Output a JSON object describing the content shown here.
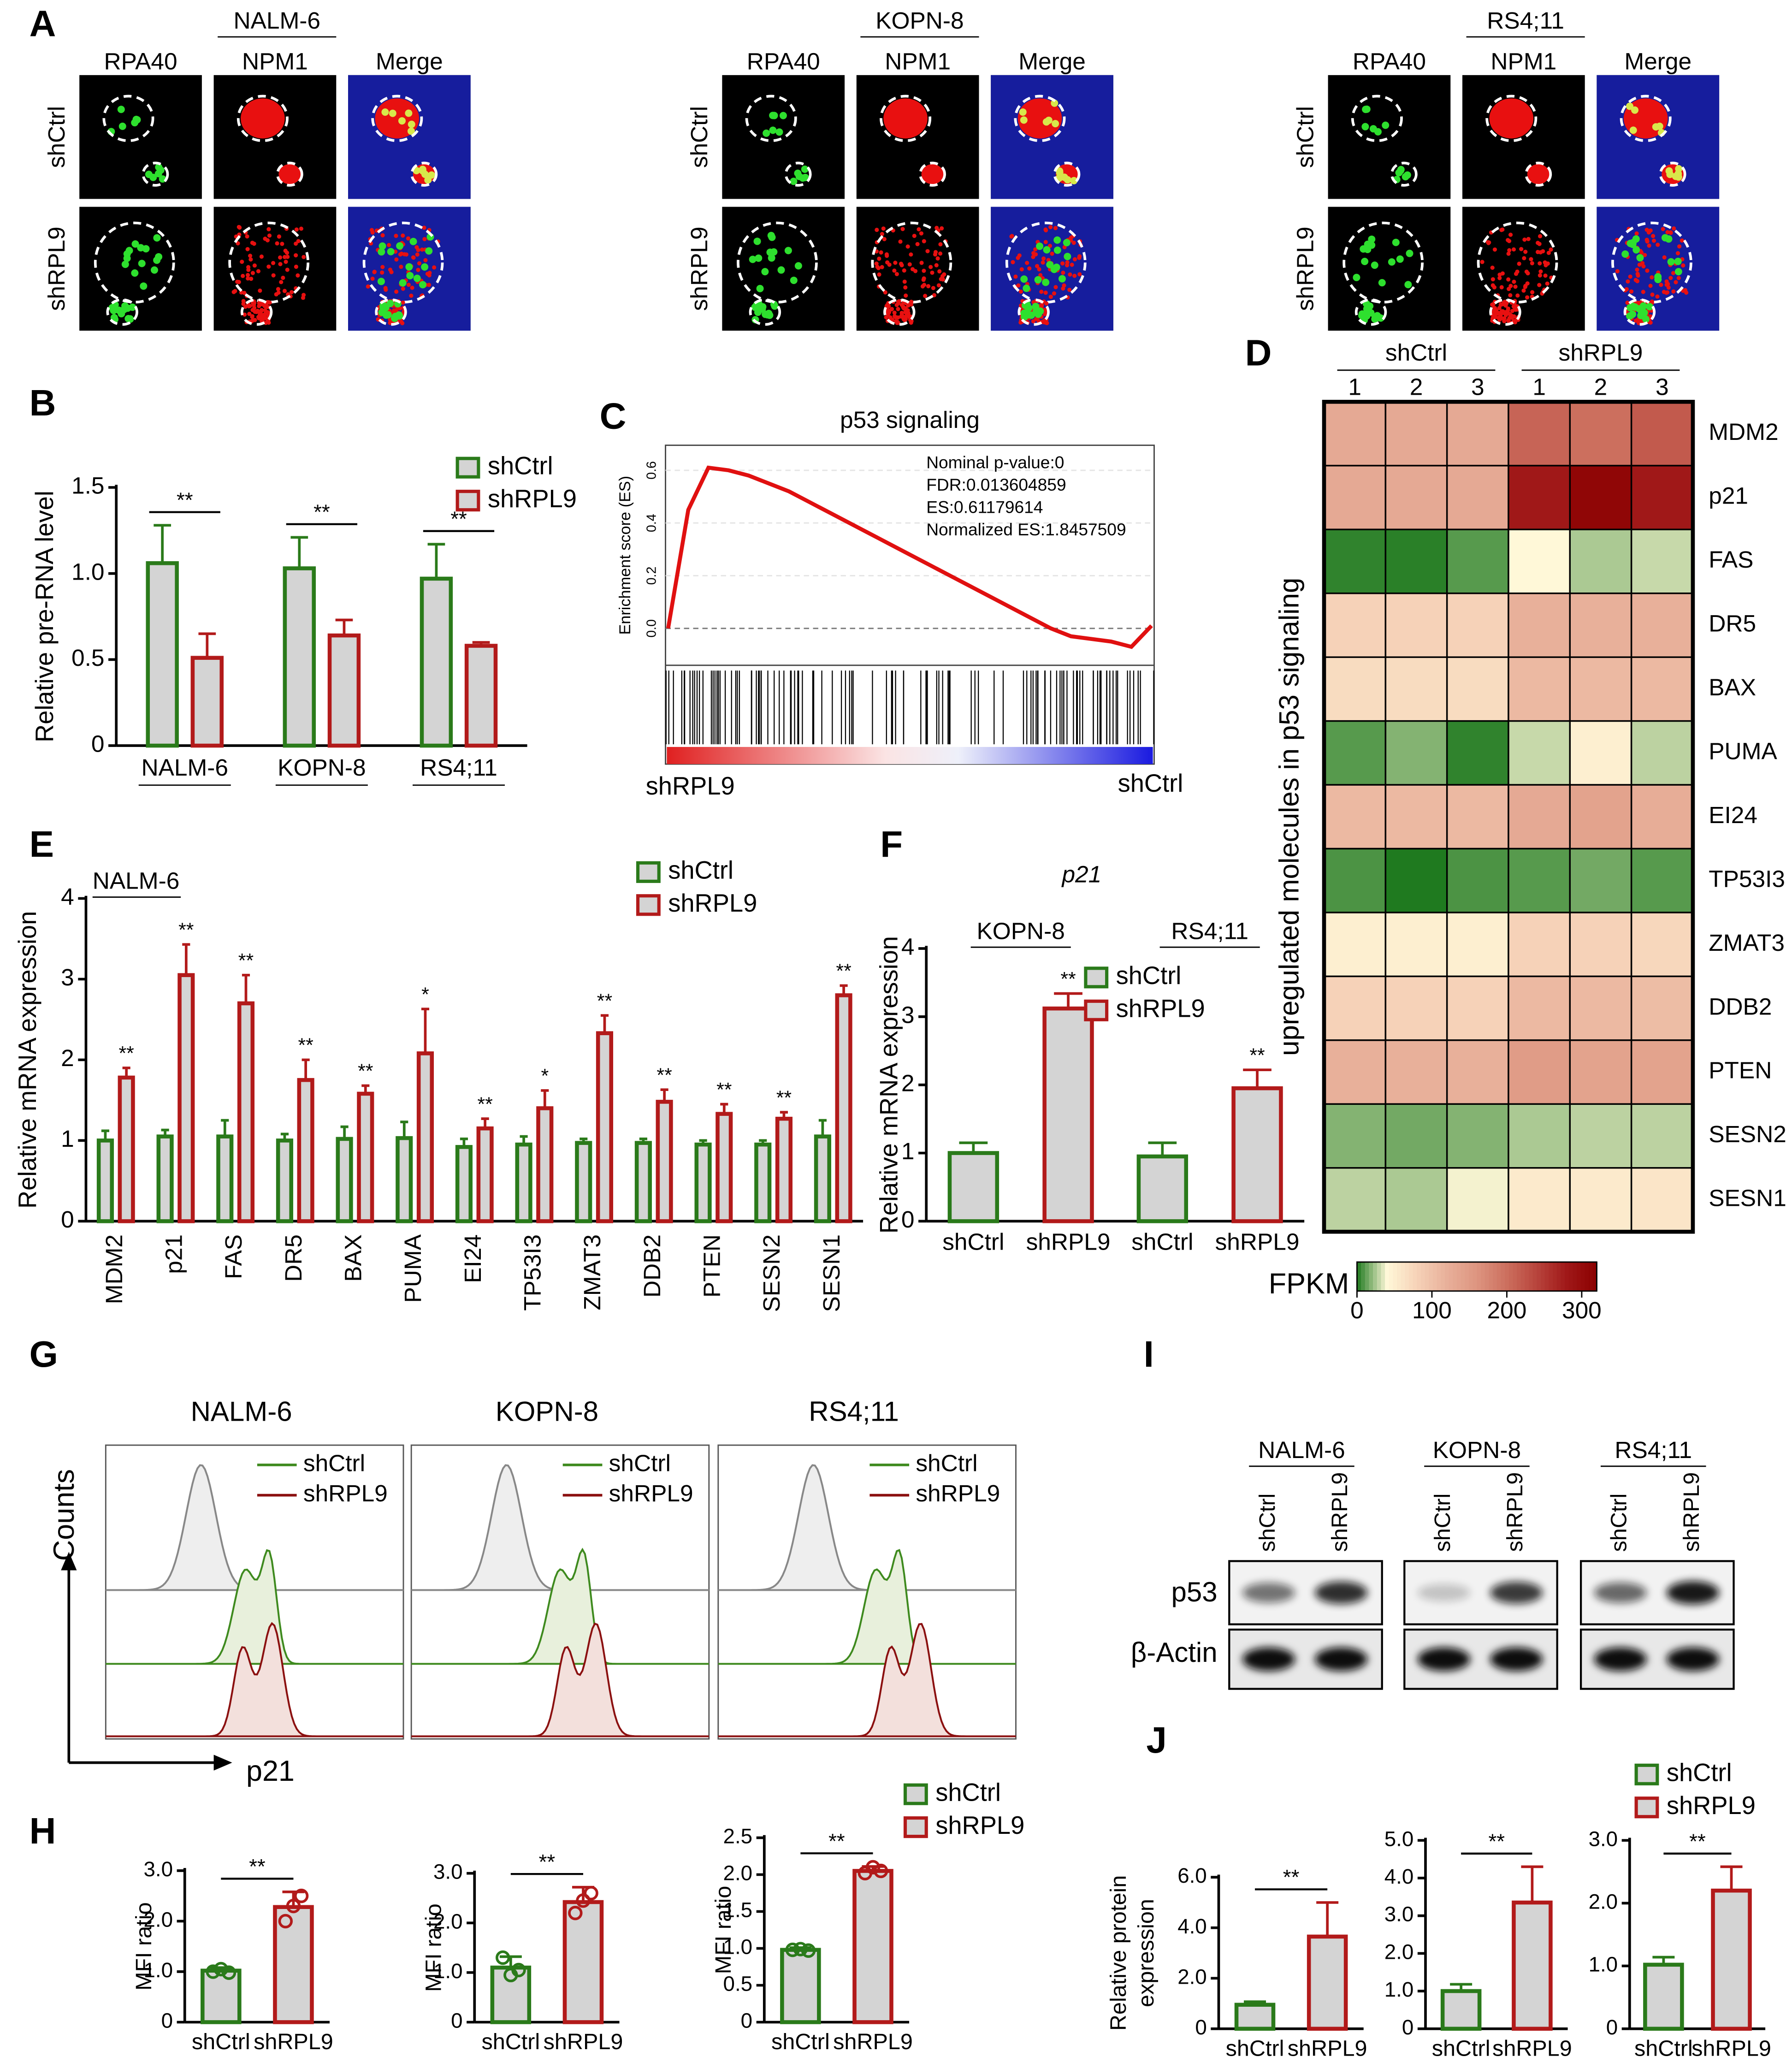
{
  "microscopy": {
    "panel": "A",
    "groups": [
      {
        "title": "NALM-6",
        "channels": [
          "RPA40",
          "NPM1",
          "Merge"
        ],
        "rows": [
          "shCtrl",
          "shRPL9"
        ]
      },
      {
        "title": "KOPN-8",
        "channels": [
          "RPA40",
          "NPM1",
          "Merge"
        ],
        "rows": [
          "shCtrl",
          "shRPL9"
        ]
      },
      {
        "title": "RS4;11",
        "channels": [
          "RPA40",
          "NPM1",
          "Merge"
        ],
        "rows": [
          "shCtrl",
          "shRPL9"
        ]
      }
    ]
  },
  "flow": {
    "panel": "G",
    "titles": [
      "NALM-6",
      "KOPN-8",
      "RS4;11"
    ],
    "legend": [
      "shCtrl",
      "shRPL9"
    ],
    "ylabel": "Counts",
    "xlabel": "p21"
  },
  "blot": {
    "panel": "I",
    "groups": [
      "NALM-6",
      "KOPN-8",
      "RS4;11"
    ],
    "lanes": [
      "shCtrl",
      "shRPL9"
    ],
    "rows": [
      "p53",
      "β-Actin"
    ]
  },
  "chart_data": [
    {
      "panel": "B",
      "type": "bar",
      "categories": [
        "NALM-6",
        "KOPN-8",
        "RS4;11"
      ],
      "series": [
        {
          "name": "shCtrl",
          "color": "#2a7a1a",
          "values": [
            1.06,
            1.03,
            0.97
          ],
          "errors": [
            0.22,
            0.18,
            0.2
          ]
        },
        {
          "name": "shRPL9",
          "color": "#b21a1a",
          "values": [
            0.51,
            0.64,
            0.58
          ],
          "errors": [
            0.14,
            0.09,
            0.02
          ]
        }
      ],
      "annotations": [
        "**",
        "**",
        "**"
      ],
      "ylabel": "Relative pre-RNA level",
      "ylim": [
        0,
        1.5
      ],
      "yticks": [
        0,
        0.5,
        {
          "value": 1,
          "label": "1.0"
        },
        1.5
      ],
      "bar_fill": "#d4d4d4"
    },
    {
      "panel": "C",
      "type": "line",
      "title": "p53 signaling",
      "ylabel": "Enrichment score (ES)",
      "color": "#e01010",
      "values": [
        0,
        0.45,
        0.61,
        0.6,
        0.58,
        0.55,
        0.52,
        0.48,
        0.44,
        0.4,
        0.36,
        0.32,
        0.28,
        0.24,
        0.2,
        0.16,
        0.12,
        0.08,
        0.04,
        0,
        -0.03,
        -0.04,
        -0.05,
        -0.07,
        0.01
      ],
      "ylim": [
        -0.14,
        0.695
      ],
      "yticks": [
        {
          "value": 0,
          "label": "0.0"
        },
        0.2,
        0.4,
        0.6
      ],
      "annotations": [
        "Nominal p-value:0",
        "FDR:0.013604859",
        "ES:0.61179614",
        "Normalized ES:1.8457509"
      ],
      "xlabels": [
        "shRPL9",
        "shCtrl"
      ]
    },
    {
      "panel": "D",
      "type": "heatmap",
      "groups": [
        "shCtrl",
        "shRPL9"
      ],
      "columns": [
        "1",
        "2",
        "3",
        "1",
        "2",
        "3"
      ],
      "rows": [
        "MDM2",
        "p21",
        "FAS",
        "DR5",
        "BAX",
        "PUMA",
        "EI24",
        "TP53I3",
        "ZMAT3",
        "DDB2",
        "PTEN",
        "SESN2",
        "SESN1"
      ],
      "values": [
        [
          130,
          130,
          130,
          210,
          200,
          220
        ],
        [
          130,
          130,
          130,
          280,
          310,
          280
        ],
        [
          3,
          2,
          10,
          40,
          25,
          30
        ],
        [
          80,
          80,
          80,
          120,
          120,
          120
        ],
        [
          70,
          70,
          70,
          110,
          110,
          110
        ],
        [
          10,
          18,
          3,
          30,
          50,
          28
        ],
        [
          110,
          110,
          110,
          130,
          140,
          125
        ],
        [
          8,
          0,
          8,
          10,
          15,
          10
        ],
        [
          50,
          50,
          50,
          80,
          80,
          75
        ],
        [
          80,
          80,
          80,
          110,
          110,
          105
        ],
        [
          120,
          120,
          120,
          150,
          140,
          140
        ],
        [
          18,
          15,
          18,
          25,
          28,
          28
        ],
        [
          28,
          25,
          38,
          55,
          55,
          60
        ]
      ],
      "ylabel": "upregulated molecules in p53 signaling",
      "colorbar_label": "FPKM",
      "clim": [
        0,
        320
      ],
      "cticks": [
        0,
        100,
        200,
        300
      ],
      "colormap": [
        "#1f7a1f",
        "#fff8d8",
        "#f6d2b8",
        "#e8b09a",
        "#dd9580",
        "#cc6f5e",
        "#b8443c",
        "#a01818",
        "#8b0000"
      ]
    },
    {
      "panel": "E",
      "type": "bar",
      "subtitle": "NALM-6",
      "categories": [
        "MDM2",
        "p21",
        "FAS",
        "DR5",
        "BAX",
        "PUMA",
        "EI24",
        "TP53I3",
        "ZMAT3",
        "DDB2",
        "PTEN",
        "SESN2",
        "SESN1"
      ],
      "series": [
        {
          "name": "shCtrl",
          "color": "#2a7a1a",
          "values": [
            1.0,
            1.05,
            1.05,
            1.0,
            1.02,
            1.03,
            0.92,
            0.95,
            0.97,
            0.97,
            0.95,
            0.95,
            1.05
          ],
          "errors": [
            0.12,
            0.08,
            0.2,
            0.08,
            0.15,
            0.2,
            0.1,
            0.1,
            0.05,
            0.05,
            0.05,
            0.05,
            0.2
          ]
        },
        {
          "name": "shRPL9",
          "color": "#b21a1a",
          "values": [
            1.78,
            3.05,
            2.7,
            1.75,
            1.58,
            2.08,
            1.15,
            1.4,
            2.33,
            1.48,
            1.33,
            1.27,
            2.8
          ],
          "errors": [
            0.12,
            0.38,
            0.35,
            0.25,
            0.1,
            0.55,
            0.12,
            0.22,
            0.22,
            0.15,
            0.12,
            0.08,
            0.12
          ]
        }
      ],
      "annotations": [
        "**",
        "**",
        "**",
        "**",
        "**",
        "*",
        "**",
        "*",
        "**",
        "**",
        "**",
        "**",
        "**"
      ],
      "ylabel": "Relative mRNA expression",
      "ylim": [
        0,
        4
      ],
      "yticks": [
        0,
        1,
        2,
        3,
        4
      ],
      "bar_fill": "#d4d4d4"
    },
    {
      "panel": "F",
      "type": "bar",
      "title": "p21",
      "categories": [
        "KOPN-8",
        "RS4;11"
      ],
      "series": [
        {
          "name": "shCtrl",
          "color": "#2a7a1a",
          "values": [
            1.0,
            0.95
          ],
          "errors": [
            0.15,
            0.2
          ]
        },
        {
          "name": "shRPL9",
          "color": "#b21a1a",
          "values": [
            3.12,
            1.95
          ],
          "errors": [
            0.22,
            0.27
          ]
        }
      ],
      "annotations": [
        "**",
        "**"
      ],
      "ylabel": "Relative mRNA expression",
      "ylim": [
        0,
        4
      ],
      "yticks": [
        0,
        1,
        2,
        3,
        4
      ],
      "bar_fill": "#d4d4d4"
    },
    {
      "panel": "H",
      "type": "bar",
      "categories": [
        "shCtrl",
        "shRPL9"
      ],
      "colors": [
        "#2a7a1a",
        "#b21a1a"
      ],
      "values": [
        1.02,
        2.28
      ],
      "errors": [
        0.06,
        0.3
      ],
      "points": [
        [
          1.0,
          1.05,
          0.98
        ],
        [
          2.0,
          2.3,
          2.5
        ]
      ],
      "annotation": "**",
      "ylabel": "MFI ratio",
      "ylim": [
        0,
        3
      ],
      "yticks": [
        0,
        {
          "value": 1,
          "label": "1.0"
        },
        {
          "value": 2,
          "label": "2.0"
        },
        {
          "value": 3,
          "label": "3.0"
        }
      ],
      "bar_fill": "#d4d4d4"
    },
    {
      "type": "bar",
      "categories": [
        "shCtrl",
        "shRPL9"
      ],
      "colors": [
        "#2a7a1a",
        "#b21a1a"
      ],
      "values": [
        1.1,
        2.42
      ],
      "errors": [
        0.22,
        0.3
      ],
      "points": [
        [
          1.3,
          0.95,
          1.05
        ],
        [
          2.2,
          2.45,
          2.6
        ]
      ],
      "annotation": "**",
      "ylabel": "MFI ratio",
      "ylim": [
        0,
        3
      ],
      "yticks": [
        0,
        {
          "value": 1,
          "label": "1.0"
        },
        {
          "value": 2,
          "label": "2.0"
        },
        {
          "value": 3,
          "label": "3.0"
        }
      ],
      "bar_fill": "#d4d4d4"
    },
    {
      "type": "bar",
      "categories": [
        "shCtrl",
        "shRPL9"
      ],
      "colors": [
        "#2a7a1a",
        "#b21a1a"
      ],
      "values": [
        0.98,
        2.05
      ],
      "errors": [
        0.03,
        0.06
      ],
      "points": [
        [
          0.98,
          0.99,
          0.97
        ],
        [
          2.02,
          2.1,
          2.05
        ]
      ],
      "annotation": "**",
      "ylabel": "MFI ratio",
      "ylim": [
        0,
        2.5
      ],
      "yticks": [
        0,
        0.5,
        {
          "value": 1,
          "label": "1.0"
        },
        1.5,
        {
          "value": 2,
          "label": "2.0"
        },
        2.5
      ],
      "bar_fill": "#d4d4d4"
    },
    {
      "panel": "J",
      "type": "bar",
      "categories": [
        "shCtrl",
        "shRPL9"
      ],
      "colors": [
        "#2a7a1a",
        "#b21a1a"
      ],
      "values": [
        0.95,
        3.65
      ],
      "errors": [
        0.12,
        1.35
      ],
      "annotation": "**",
      "ylabel": [
        "Relative protein",
        "expression"
      ],
      "ylim": [
        0,
        6
      ],
      "yticks": [
        0,
        {
          "value": 2,
          "label": "2.0"
        },
        {
          "value": 4,
          "label": "4.0"
        },
        {
          "value": 6,
          "label": "6.0"
        }
      ],
      "bar_fill": "#d4d4d4"
    },
    {
      "type": "bar",
      "categories": [
        "shCtrl",
        "shRPL9"
      ],
      "colors": [
        "#2a7a1a",
        "#b21a1a"
      ],
      "values": [
        1.0,
        3.35
      ],
      "errors": [
        0.18,
        0.95
      ],
      "annotation": "**",
      "ylim": [
        0,
        5
      ],
      "yticks": [
        0,
        {
          "value": 1,
          "label": "1.0"
        },
        {
          "value": 2,
          "label": "2.0"
        },
        {
          "value": 3,
          "label": "3.0"
        },
        {
          "value": 4,
          "label": "4.0"
        },
        {
          "value": 5,
          "label": "5.0"
        }
      ],
      "bar_fill": "#d4d4d4"
    },
    {
      "type": "bar",
      "categories": [
        "shCtrl",
        "shRPL9"
      ],
      "colors": [
        "#2a7a1a",
        "#b21a1a"
      ],
      "values": [
        1.02,
        2.2
      ],
      "errors": [
        0.12,
        0.38
      ],
      "annotation": "**",
      "ylim": [
        0,
        3
      ],
      "yticks": [
        0,
        {
          "value": 1,
          "label": "1.0"
        },
        {
          "value": 2,
          "label": "2.0"
        },
        {
          "value": 3,
          "label": "3.0"
        }
      ],
      "bar_fill": "#d4d4d4"
    }
  ]
}
